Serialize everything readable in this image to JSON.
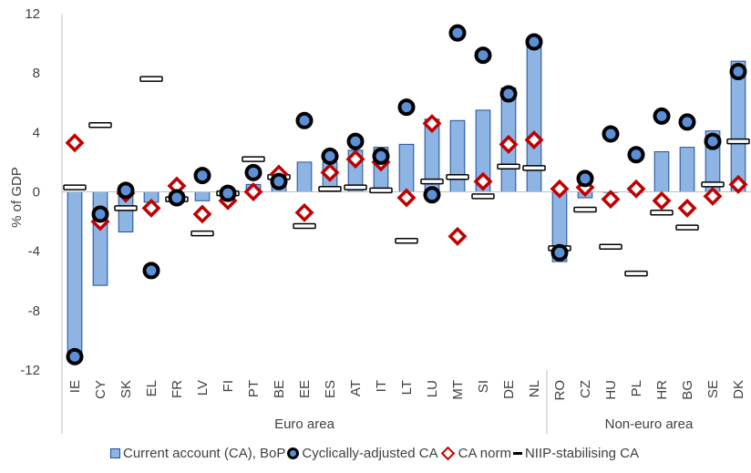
{
  "chart_data": {
    "type": "bar",
    "ylabel": "% of GDP",
    "ylim": [
      -12,
      12
    ],
    "yticks": [
      -12,
      -8,
      -4,
      0,
      4,
      8,
      12
    ],
    "categories": [
      "IE",
      "CY",
      "SK",
      "EL",
      "FR",
      "LV",
      "FI",
      "PT",
      "BE",
      "EE",
      "ES",
      "AT",
      "IT",
      "LT",
      "LU",
      "MT",
      "SI",
      "DE",
      "NL",
      "RO",
      "CZ",
      "HU",
      "PL",
      "HR",
      "BG",
      "SE",
      "DK"
    ],
    "groups": [
      {
        "label": "Euro area",
        "start": 0,
        "end": 18
      },
      {
        "label": "Non-euro area",
        "start": 19,
        "end": 26
      }
    ],
    "series": [
      {
        "name": "Current account (CA), BoP",
        "kind": "bar",
        "color": "#8EB4E3",
        "values": [
          -11.2,
          -6.3,
          -2.7,
          -0.7,
          -0.6,
          -0.6,
          -0.2,
          0.5,
          0.6,
          2.0,
          2.0,
          2.8,
          3.0,
          3.2,
          4.9,
          4.8,
          5.5,
          7.0,
          10.2,
          -4.7,
          -0.4,
          0.0,
          0.0,
          2.7,
          3.0,
          4.1,
          8.8
        ]
      },
      {
        "name": "Cyclically-adjusted CA",
        "kind": "circle",
        "color": "#000000",
        "values": [
          -11.1,
          -1.5,
          0.1,
          -5.3,
          -0.4,
          1.1,
          -0.1,
          1.3,
          0.7,
          4.8,
          2.4,
          3.4,
          2.4,
          5.7,
          -0.2,
          10.7,
          9.2,
          6.6,
          10.1,
          -4.1,
          0.9,
          3.9,
          2.5,
          5.1,
          4.7,
          3.4,
          8.1
        ]
      },
      {
        "name": "CA norm",
        "kind": "diamond",
        "color": "#C00000",
        "values": [
          3.3,
          -2.0,
          -0.1,
          -1.1,
          0.4,
          -1.5,
          -0.6,
          0.0,
          1.2,
          -1.4,
          1.3,
          2.2,
          2.0,
          -0.4,
          4.6,
          -3.0,
          0.7,
          3.2,
          3.5,
          0.2,
          0.3,
          -0.5,
          0.2,
          -0.6,
          -1.1,
          -0.3,
          0.5
        ]
      },
      {
        "name": "NIIP-stabilising CA",
        "kind": "dash",
        "color": "#000000",
        "values": [
          0.3,
          4.5,
          -1.1,
          7.6,
          -0.5,
          -2.8,
          -0.1,
          2.2,
          1.0,
          -2.3,
          0.2,
          0.3,
          0.1,
          -3.3,
          0.7,
          1.0,
          -0.3,
          1.7,
          1.6,
          -3.8,
          -1.2,
          -3.7,
          -5.5,
          -1.4,
          -2.4,
          0.5,
          3.4
        ]
      }
    ]
  },
  "legend": {
    "items": [
      {
        "label": "Current account (CA), BoP"
      },
      {
        "label": "Cyclically-adjusted CA"
      },
      {
        "label": "CA norm"
      },
      {
        "label": "NIIP-stabilising CA"
      }
    ]
  }
}
